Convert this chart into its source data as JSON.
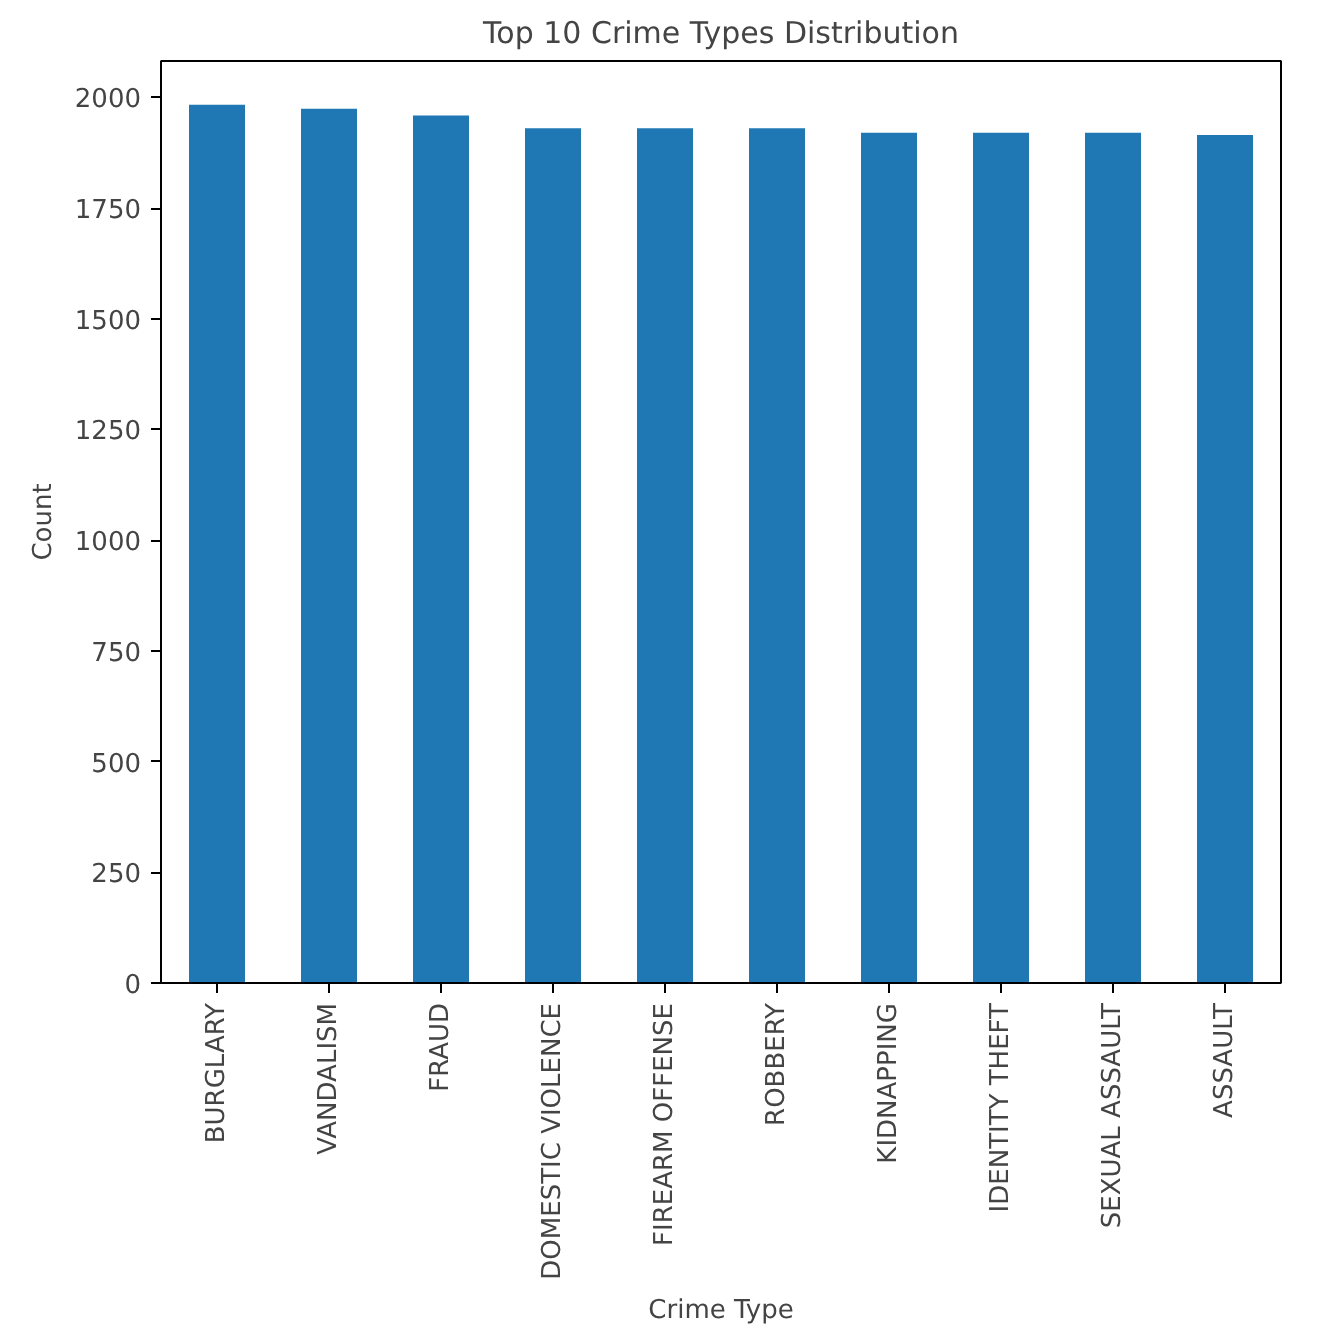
{
  "chart_data": {
    "type": "bar",
    "title": "Top 10 Crime Types Distribution",
    "xlabel": "Crime Type",
    "ylabel": "Count",
    "categories": [
      "BURGLARY",
      "VANDALISM",
      "FRAUD",
      "DOMESTIC VIOLENCE",
      "FIREARM OFFENSE",
      "ROBBERY",
      "KIDNAPPING",
      "IDENTITY THEFT",
      "SEXUAL ASSAULT",
      "ASSAULT"
    ],
    "values": [
      1983,
      1974,
      1959,
      1930,
      1930,
      1930,
      1920,
      1920,
      1920,
      1915
    ],
    "color": "#1f77b4",
    "ylim": [
      0,
      2082
    ],
    "yticks": [
      0,
      250,
      500,
      750,
      1000,
      1250,
      1500,
      1750,
      2000
    ],
    "grid": false
  }
}
